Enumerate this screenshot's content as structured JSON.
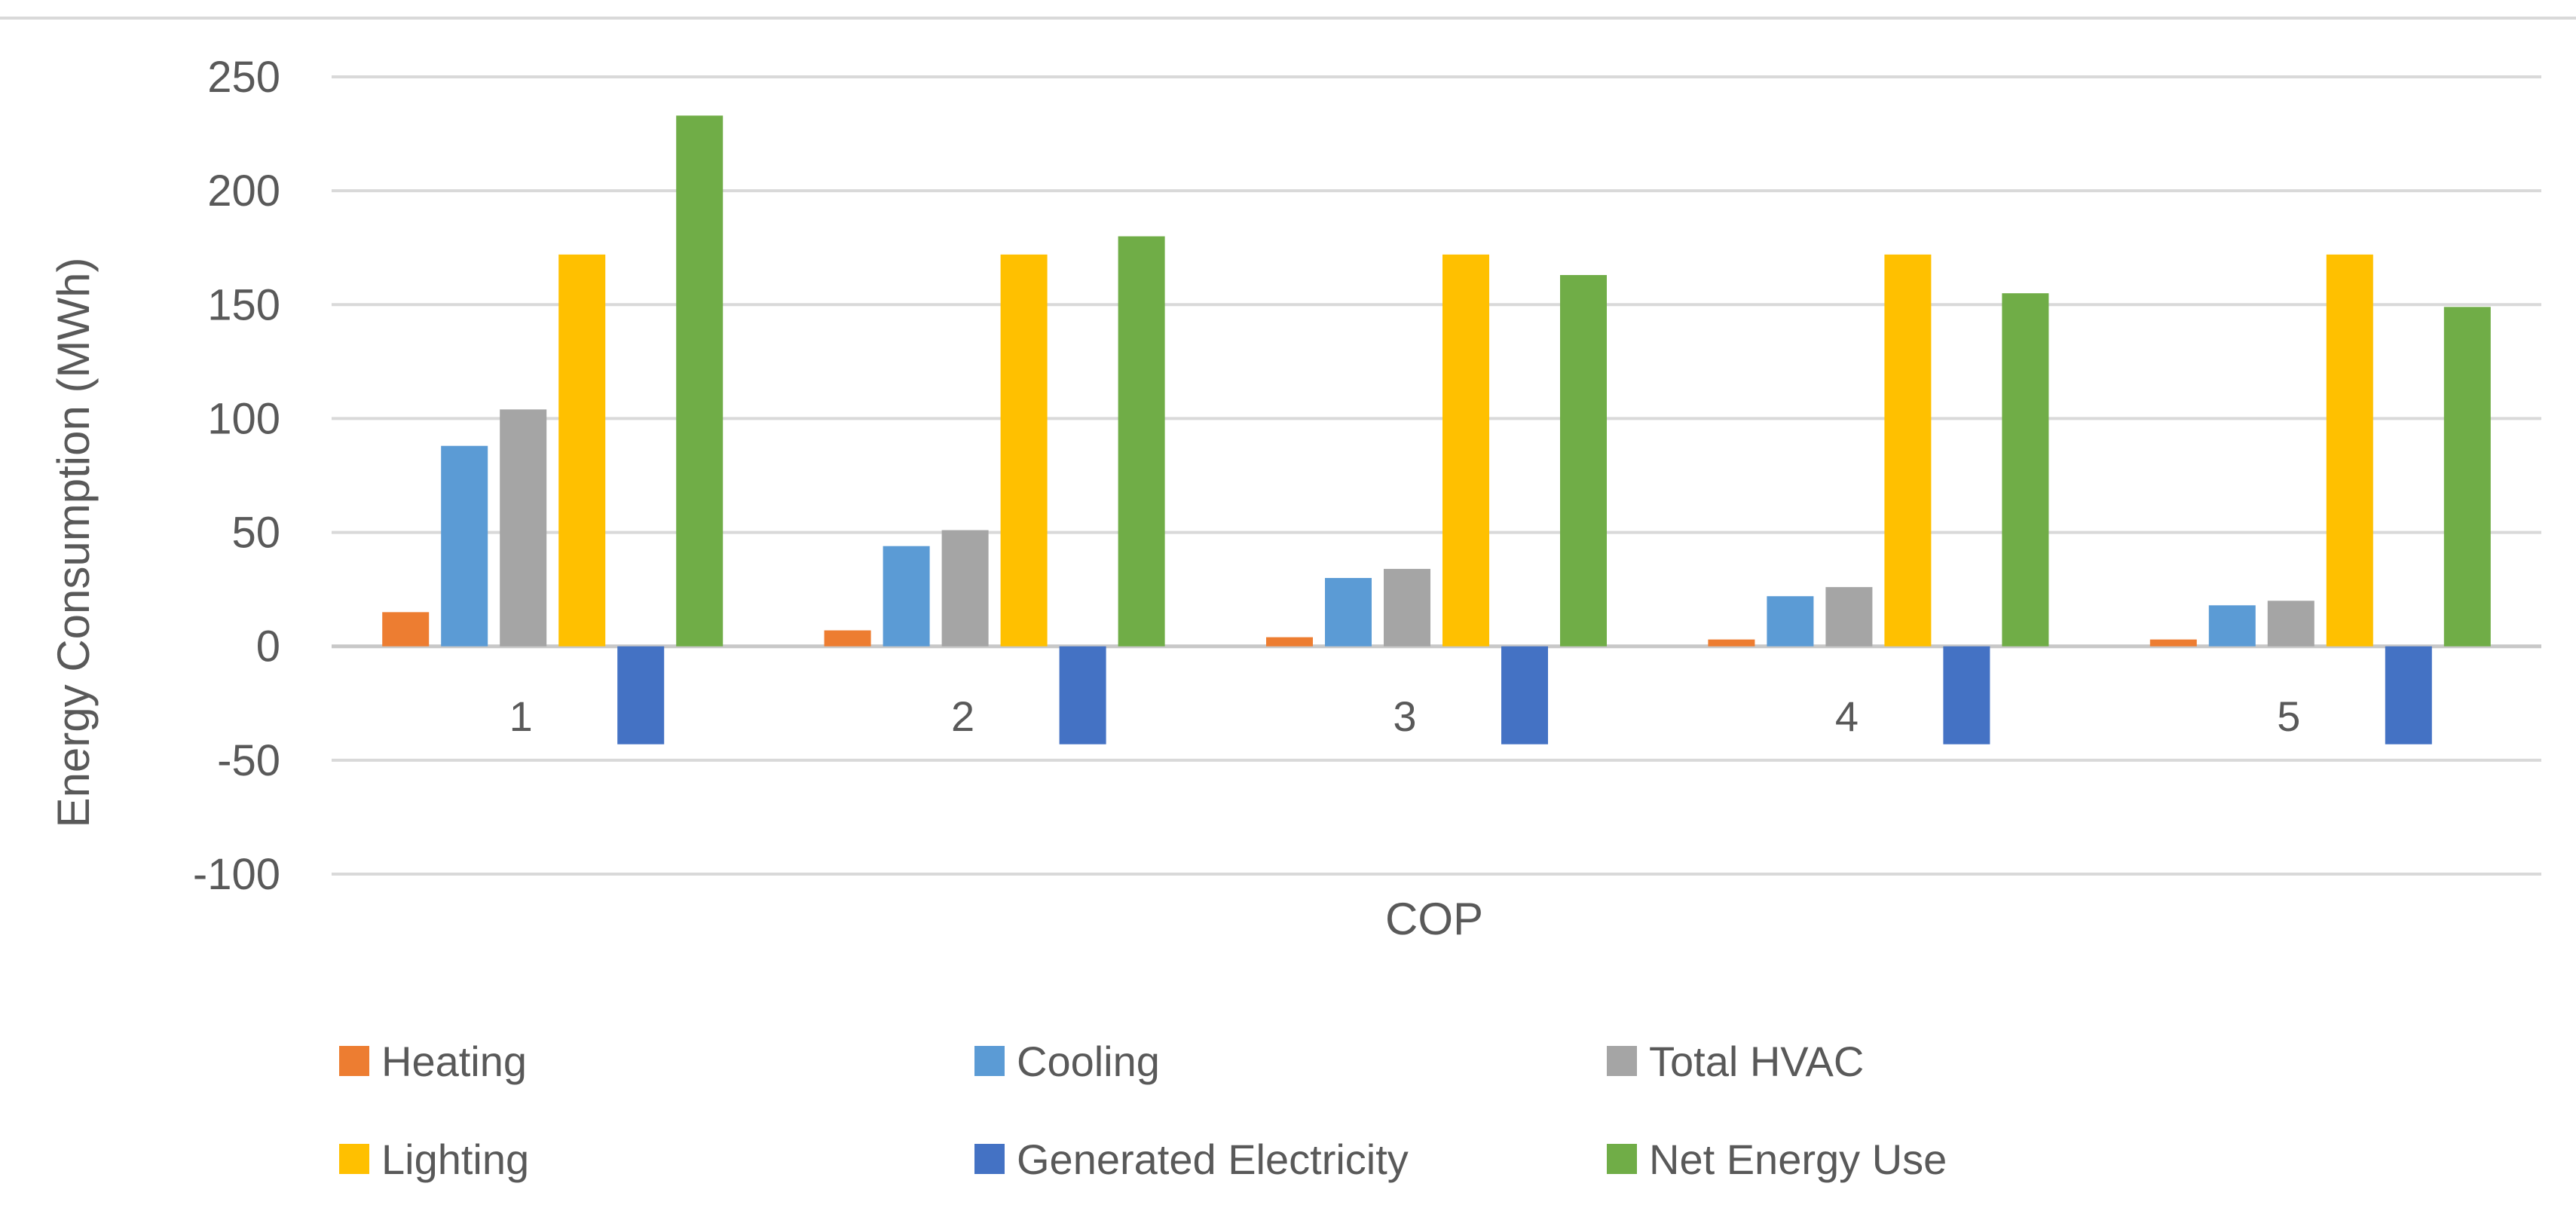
{
  "chart_data": {
    "type": "bar",
    "title": "",
    "xlabel": "COP",
    "ylabel": "Energy Consumption (MWh)",
    "ylim": [
      -100,
      250
    ],
    "yticks": [
      250,
      200,
      150,
      100,
      50,
      0,
      -50,
      -100
    ],
    "categories": [
      "1",
      "2",
      "3",
      "4",
      "5"
    ],
    "grid": true,
    "legend_position": "bottom",
    "series": [
      {
        "name": "Heating",
        "color": "#ed7d31",
        "values": [
          15,
          7,
          4,
          3,
          3
        ]
      },
      {
        "name": "Cooling",
        "color": "#5b9bd5",
        "values": [
          88,
          44,
          30,
          22,
          18
        ]
      },
      {
        "name": "Total HVAC",
        "color": "#a5a5a5",
        "values": [
          104,
          51,
          34,
          26,
          20
        ]
      },
      {
        "name": "Lighting",
        "color": "#ffc000",
        "values": [
          172,
          172,
          172,
          172,
          172
        ]
      },
      {
        "name": "Generated Electricity",
        "color": "#4472c4",
        "values": [
          -43,
          -43,
          -43,
          -43,
          -43
        ]
      },
      {
        "name": "Net Energy Use",
        "color": "#70ad47",
        "values": [
          233,
          180,
          163,
          155,
          149
        ]
      }
    ]
  }
}
